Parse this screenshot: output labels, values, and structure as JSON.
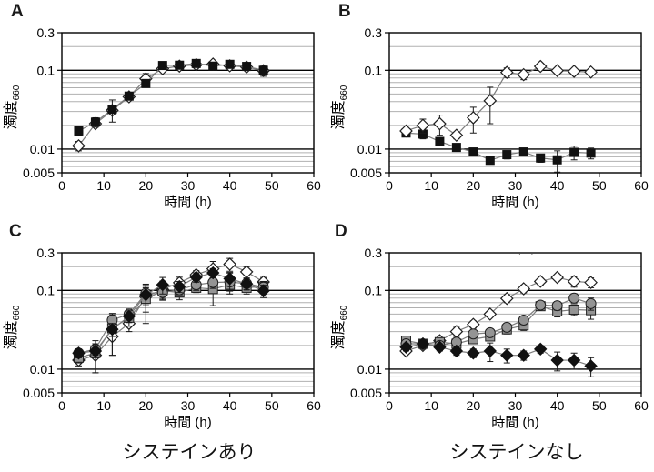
{
  "captions": {
    "left": "システインあり",
    "right": "システインなし"
  },
  "artifact": ". .",
  "axes": {
    "x_label": "時間 (h)",
    "y_label_main": "濁度",
    "y_label_sub": "660",
    "x_range": [
      0,
      60
    ],
    "y_range": [
      0.005,
      0.3
    ],
    "y_scale": "log",
    "grid": "horizontal",
    "x_tick_values": [
      0,
      10,
      20,
      30,
      40,
      50,
      60
    ],
    "x_tick_labels": [
      "0",
      "10",
      "20",
      "30",
      "40",
      "50",
      "60"
    ],
    "y_ticks": [
      {
        "label": "0.3",
        "value": 0.3
      },
      {
        "label": "0.1",
        "value": 0.1
      },
      {
        "label": "0.01",
        "value": 0.01
      },
      {
        "label": "0.005",
        "value": 0.005
      }
    ],
    "major_gridlines": [
      0.1,
      0.01
    ],
    "minor_gridlines": [
      0.2,
      0.09,
      0.08,
      0.07,
      0.06,
      0.05,
      0.04,
      0.03,
      0.02,
      0.009,
      0.008,
      0.007,
      0.006
    ]
  },
  "colors": {
    "axis": "#000000",
    "grid_major": "#000000",
    "grid_minor": "#b0b0b0",
    "series_line": "#7d7d7d",
    "error_bar": "#1a1a1a",
    "marker_black": "#111111",
    "marker_gray": "#949494",
    "marker_stroke": "#1f1f1f",
    "open_fill": "#ffffff"
  },
  "chart_data": [
    {
      "type": "line",
      "panel_label": "A",
      "x": [
        4,
        8,
        12,
        16,
        20,
        24,
        28,
        32,
        36,
        40,
        44,
        48
      ],
      "series": [
        {
          "name": "open-diamond",
          "marker": "open-diamond",
          "values": [
            0.011,
            0.021,
            0.031,
            0.046,
            0.078,
            0.105,
            0.113,
            0.118,
            0.12,
            0.114,
            0.11,
            0.099
          ],
          "errors": [
            0.0015,
            0.002,
            0.003,
            0.003,
            0.013,
            0.004,
            0.004,
            0.005,
            0.006,
            0.004,
            0.004,
            0.005
          ]
        },
        {
          "name": "filled-square",
          "marker": "filled-square",
          "values": [
            0.017,
            0.022,
            0.032,
            0.047,
            0.068,
            0.115,
            0.116,
            0.122,
            0.113,
            0.119,
            0.112,
            0.1
          ],
          "errors": [
            0.002,
            0.003,
            0.01,
            0.004,
            0.005,
            0.005,
            0.006,
            0.008,
            0.006,
            0.007,
            0.009,
            0.016
          ]
        }
      ]
    },
    {
      "type": "line",
      "panel_label": "B",
      "x": [
        4,
        8,
        12,
        16,
        20,
        24,
        28,
        32,
        36,
        40,
        44,
        48
      ],
      "series": [
        {
          "name": "filled-square",
          "marker": "filled-square",
          "values": [
            0.016,
            0.0155,
            0.0125,
            0.0105,
            0.0092,
            0.0072,
            0.0085,
            0.0092,
            0.0077,
            0.0073,
            0.0091,
            0.0089
          ],
          "errors": [
            0.0012,
            0.002,
            0.0012,
            0.001,
            0.0008,
            0.0006,
            0.001,
            0.001,
            0.0009,
            0.0022,
            0.0018,
            0.0014
          ]
        },
        {
          "name": "open-diamond",
          "marker": "open-diamond",
          "values": [
            0.017,
            0.02,
            0.021,
            0.015,
            0.025,
            0.041,
            0.094,
            0.088,
            0.112,
            0.099,
            0.097,
            0.095
          ],
          "errors": [
            0.0015,
            0.004,
            0.006,
            0.0015,
            0.009,
            0.02,
            0.013,
            0.012,
            0.011,
            0.007,
            0.005,
            0.009
          ]
        }
      ]
    },
    {
      "type": "line",
      "panel_label": "C",
      "x": [
        4,
        8,
        12,
        16,
        20,
        24,
        28,
        32,
        36,
        40,
        44,
        48
      ],
      "series": [
        {
          "name": "open-diamond",
          "marker": "open-diamond",
          "values": [
            0.013,
            0.015,
            0.026,
            0.038,
            0.083,
            0.103,
            0.125,
            0.158,
            0.188,
            0.215,
            0.172,
            0.128
          ],
          "errors": [
            0.002,
            0.006,
            0.011,
            0.008,
            0.03,
            0.028,
            0.022,
            0.02,
            0.045,
            0.04,
            0.028,
            0.018
          ]
        },
        {
          "name": "gray-square",
          "marker": "gray-square",
          "values": [
            0.014,
            0.016,
            0.033,
            0.045,
            0.078,
            0.099,
            0.094,
            0.108,
            0.104,
            0.118,
            0.108,
            0.112
          ],
          "errors": [
            0.002,
            0.007,
            0.018,
            0.01,
            0.04,
            0.02,
            0.018,
            0.014,
            0.04,
            0.02,
            0.018,
            0.018
          ]
        },
        {
          "name": "gray-circle",
          "marker": "gray-circle",
          "values": [
            0.016,
            0.018,
            0.042,
            0.05,
            0.092,
            0.094,
            0.102,
            0.118,
            0.126,
            0.128,
            0.122,
            0.11
          ],
          "errors": [
            0.002,
            0.003,
            0.007,
            0.008,
            0.028,
            0.018,
            0.014,
            0.018,
            0.02,
            0.038,
            0.02,
            0.018
          ]
        },
        {
          "name": "filled-diamond",
          "marker": "filled-diamond",
          "values": [
            0.016,
            0.017,
            0.032,
            0.047,
            0.088,
            0.118,
            0.112,
            0.147,
            0.167,
            0.141,
            0.121,
            0.099
          ],
          "errors": [
            0.002,
            0.003,
            0.006,
            0.008,
            0.02,
            0.028,
            0.018,
            0.02,
            0.022,
            0.028,
            0.02,
            0.018
          ]
        }
      ]
    },
    {
      "type": "line",
      "panel_label": "D",
      "x": [
        4,
        8,
        12,
        16,
        20,
        24,
        28,
        32,
        36,
        40,
        44,
        48
      ],
      "series": [
        {
          "name": "open-diamond",
          "marker": "open-diamond",
          "values": [
            0.017,
            0.02,
            0.023,
            0.03,
            0.037,
            0.05,
            0.079,
            0.105,
            0.13,
            0.146,
            0.13,
            0.126
          ],
          "errors": [
            0.0015,
            0.002,
            0.002,
            0.004,
            0.004,
            0.004,
            0.009,
            0.012,
            0.013,
            0.01,
            0.02,
            0.018
          ]
        },
        {
          "name": "gray-square",
          "marker": "gray-square",
          "values": [
            0.023,
            0.021,
            0.022,
            0.021,
            0.024,
            0.026,
            0.032,
            0.036,
            0.063,
            0.054,
            0.057,
            0.056
          ],
          "errors": [
            0.002,
            0.002,
            0.002,
            0.002,
            0.002,
            0.003,
            0.004,
            0.005,
            0.007,
            0.008,
            0.009,
            0.013
          ]
        },
        {
          "name": "gray-circle",
          "marker": "gray-circle",
          "values": [
            0.021,
            0.021,
            0.02,
            0.022,
            0.028,
            0.029,
            0.034,
            0.042,
            0.065,
            0.064,
            0.08,
            0.068
          ],
          "errors": [
            0.002,
            0.002,
            0.002,
            0.002,
            0.003,
            0.003,
            0.004,
            0.005,
            0.006,
            0.008,
            0.011,
            0.012
          ]
        },
        {
          "name": "filled-diamond",
          "marker": "filled-diamond",
          "values": [
            0.019,
            0.021,
            0.019,
            0.017,
            0.016,
            0.017,
            0.015,
            0.015,
            0.018,
            0.013,
            0.013,
            0.011
          ],
          "errors": [
            0.002,
            0.002,
            0.002,
            0.002,
            0.002,
            0.0045,
            0.003,
            0.002,
            0.002,
            0.0035,
            0.003,
            0.003
          ]
        }
      ]
    }
  ]
}
